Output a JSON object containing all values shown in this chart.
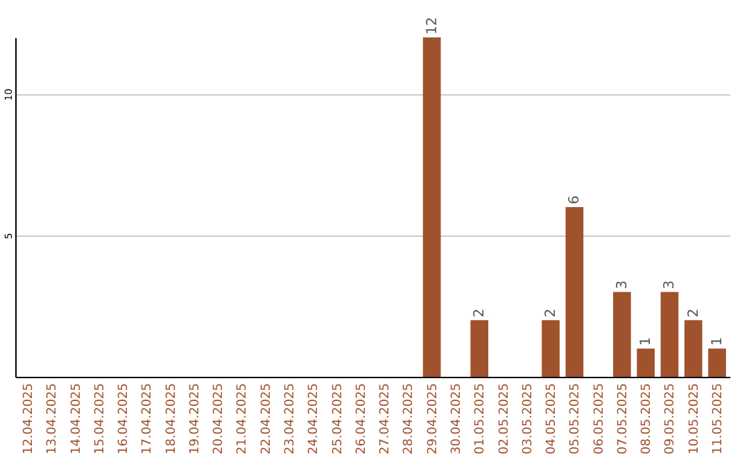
{
  "chart_data": {
    "type": "bar",
    "categories": [
      "12.04.2025",
      "13.04.2025",
      "14.04.2025",
      "15.04.2025",
      "16.04.2025",
      "17.04.2025",
      "18.04.2025",
      "19.04.2025",
      "20.04.2025",
      "21.04.2025",
      "22.04.2025",
      "23.04.2025",
      "24.04.2025",
      "25.04.2025",
      "26.04.2025",
      "27.04.2025",
      "28.04.2025",
      "29.04.2025",
      "30.04.2025",
      "01.05.2025",
      "02.05.2025",
      "03.05.2025",
      "04.05.2025",
      "05.05.2025",
      "06.05.2025",
      "07.05.2025",
      "08.05.2025",
      "09.05.2025",
      "10.05.2025",
      "11.05.2025"
    ],
    "values": [
      null,
      null,
      null,
      null,
      null,
      null,
      null,
      null,
      null,
      null,
      null,
      null,
      null,
      null,
      null,
      null,
      null,
      12,
      null,
      2,
      null,
      null,
      2,
      6,
      null,
      3,
      1,
      3,
      2,
      1
    ],
    "color": "#a0522d",
    "ylim": [
      0,
      12
    ],
    "yticks": [
      5,
      10
    ],
    "grid": "y",
    "data_labels": true
  }
}
